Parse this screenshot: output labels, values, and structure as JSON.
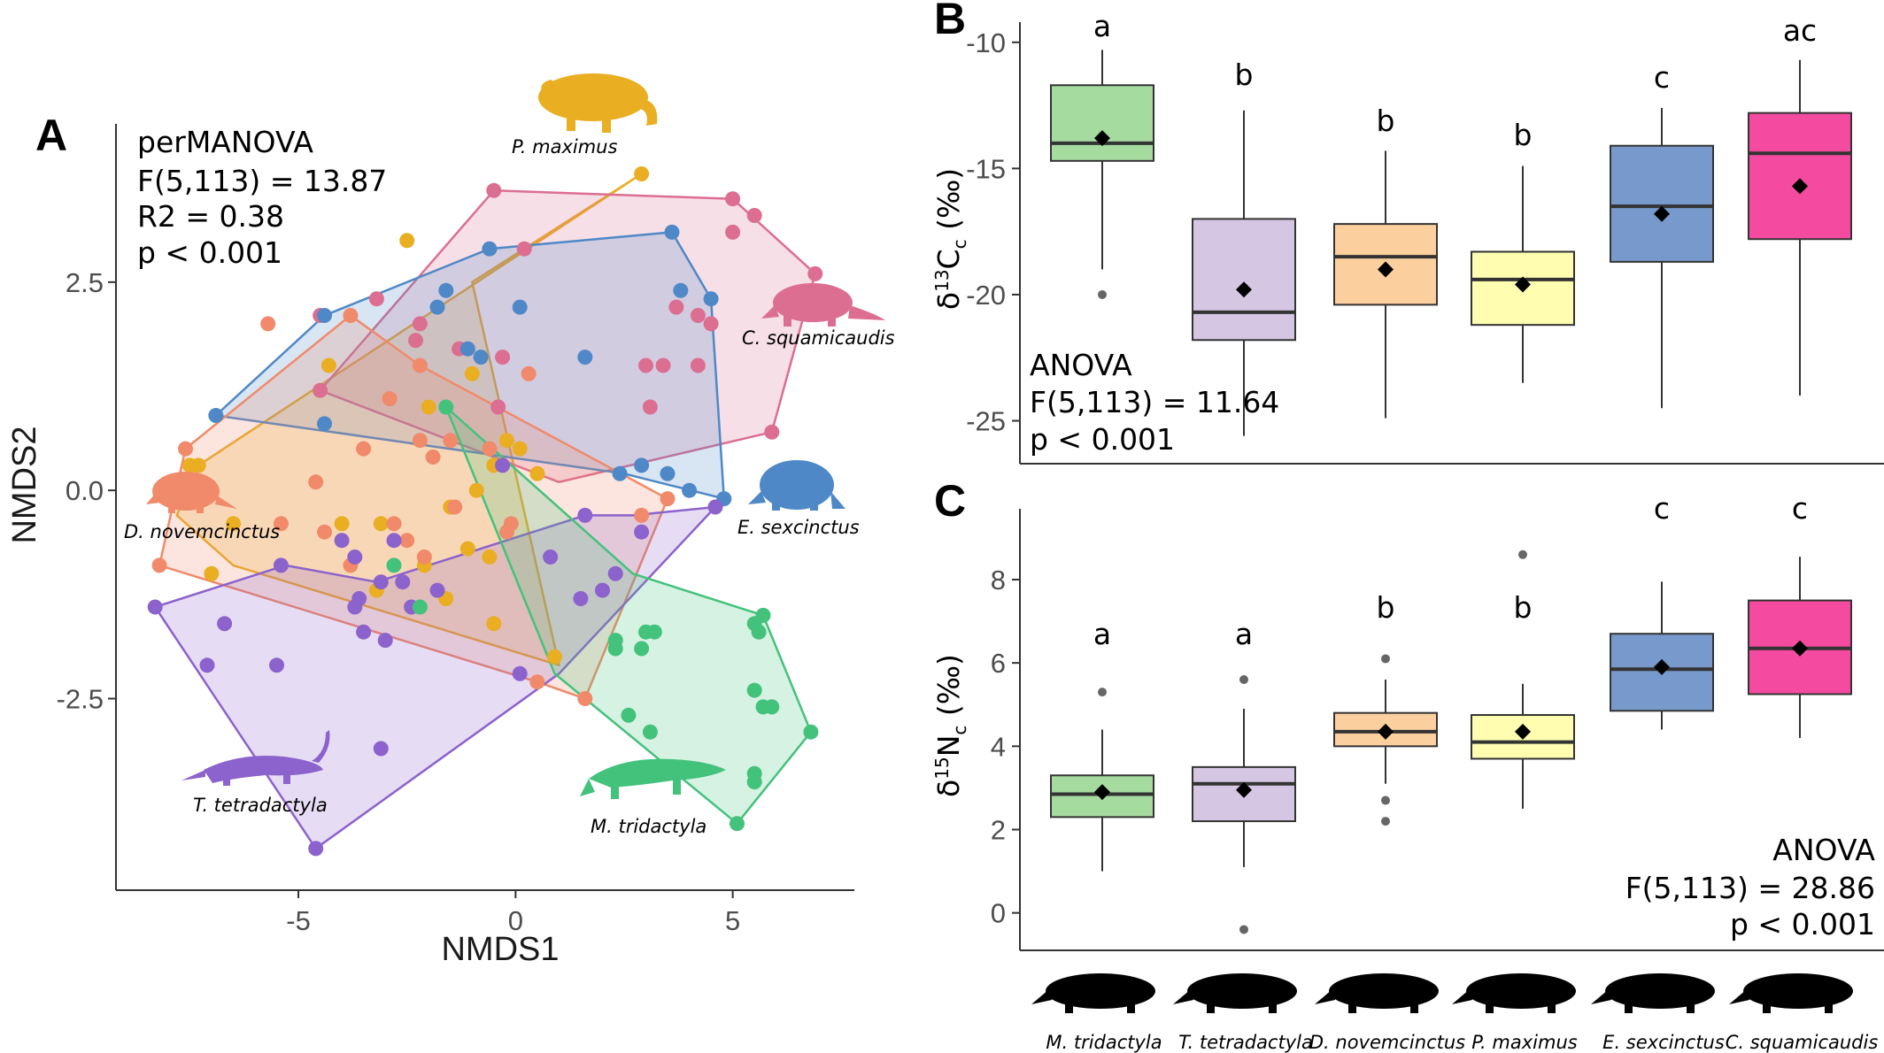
{
  "chart_data": [
    {
      "panel": "A",
      "type": "scatter",
      "xlabel": "NMDS1",
      "ylabel": "NMDS2",
      "xlim": [
        -9.2,
        7.8
      ],
      "ylim": [
        -4.8,
        4.4
      ],
      "xticks": [
        -5,
        0,
        5
      ],
      "xtick_labels": [
        "-5",
        "0",
        "5"
      ],
      "yticks": [
        2.5,
        0.0,
        -2.5
      ],
      "ytick_labels": [
        "2.5",
        "0.0",
        "-2.5"
      ],
      "grid": false,
      "stats": [
        "perMANOVA",
        "F(5,113) = 13.87",
        "R2 = 0.38",
        "p < 0.001"
      ],
      "series": [
        {
          "name": "P. maximus",
          "color": "#e9ae22",
          "hull": [
            [
              2.9,
              3.8
            ],
            [
              -7.3,
              0.3
            ],
            [
              -7.8,
              -0.3
            ],
            [
              -6.5,
              -0.9
            ],
            [
              1.0,
              -2.1
            ],
            [
              -1.0,
              2.5
            ]
          ],
          "points": [
            [
              2.9,
              3.8
            ],
            [
              -2.5,
              3.0
            ],
            [
              -4.3,
              1.5
            ],
            [
              -7.3,
              0.3
            ],
            [
              -6.5,
              -0.4
            ],
            [
              -7.0,
              -1.0
            ],
            [
              -4.0,
              -0.4
            ],
            [
              -3.1,
              -0.4
            ],
            [
              -1.5,
              -0.2
            ],
            [
              -0.5,
              0.3
            ],
            [
              0.1,
              0.5
            ],
            [
              0.5,
              0.2
            ],
            [
              -2.0,
              1.0
            ],
            [
              -1.0,
              1.4
            ],
            [
              -0.9,
              0.0
            ],
            [
              -0.6,
              -0.8
            ],
            [
              -0.2,
              0.6
            ],
            [
              -2.1,
              -0.9
            ],
            [
              -1.1,
              -0.7
            ],
            [
              -1.6,
              -1.3
            ],
            [
              0.9,
              -2.0
            ],
            [
              -3.2,
              -1.2
            ],
            [
              -0.5,
              -1.6
            ],
            [
              -7.5,
              0.3
            ]
          ]
        },
        {
          "name": "C. squamicaudis",
          "color": "#dc6e91",
          "hull": [
            [
              -0.5,
              3.6
            ],
            [
              5.0,
              3.5
            ],
            [
              6.9,
              2.6
            ],
            [
              5.9,
              0.7
            ],
            [
              1.0,
              0.1
            ],
            [
              -4.5,
              1.2
            ]
          ],
          "points": [
            [
              -0.5,
              3.6
            ],
            [
              5.0,
              3.5
            ],
            [
              5.5,
              3.3
            ],
            [
              6.9,
              2.6
            ],
            [
              5.9,
              0.7
            ],
            [
              5.0,
              3.1
            ],
            [
              4.2,
              2.1
            ],
            [
              4.5,
              2.0
            ],
            [
              3.7,
              2.2
            ],
            [
              4.2,
              1.5
            ],
            [
              3.4,
              1.5
            ],
            [
              3.1,
              1.0
            ],
            [
              3.0,
              1.5
            ],
            [
              0.2,
              2.9
            ],
            [
              -2.2,
              2.0
            ],
            [
              -3.2,
              2.3
            ],
            [
              -2.3,
              1.8
            ],
            [
              -4.5,
              1.2
            ],
            [
              -4.5,
              2.1
            ],
            [
              -1.3,
              1.7
            ],
            [
              -0.3,
              1.6
            ],
            [
              -0.4,
              1.0
            ]
          ]
        },
        {
          "name": "E. sexcinctus",
          "color": "#4f88c7",
          "hull": [
            [
              -6.9,
              0.9
            ],
            [
              -4.4,
              2.1
            ],
            [
              -0.6,
              2.9
            ],
            [
              3.6,
              3.1
            ],
            [
              4.5,
              2.3
            ],
            [
              4.8,
              -0.1
            ],
            [
              2.5,
              0.2
            ]
          ],
          "points": [
            [
              -6.9,
              0.9
            ],
            [
              -4.4,
              2.1
            ],
            [
              -0.6,
              2.9
            ],
            [
              3.6,
              3.1
            ],
            [
              4.5,
              2.3
            ],
            [
              4.8,
              -0.1
            ],
            [
              3.8,
              2.4
            ],
            [
              2.4,
              0.2
            ],
            [
              2.9,
              0.3
            ],
            [
              3.5,
              0.2
            ],
            [
              -1.6,
              2.4
            ],
            [
              -0.8,
              1.6
            ],
            [
              -1.1,
              1.7
            ],
            [
              0.1,
              2.2
            ],
            [
              -1.8,
              2.2
            ],
            [
              -4.4,
              0.8
            ],
            [
              1.6,
              1.6
            ],
            [
              4.0,
              0.0
            ]
          ]
        },
        {
          "name": "D. novemcincus",
          "color": "#f08a6a",
          "hull": [
            [
              -7.6,
              0.5
            ],
            [
              -3.8,
              2.1
            ],
            [
              -2.2,
              1.5
            ],
            [
              3.5,
              -0.1
            ],
            [
              1.6,
              -2.5
            ],
            [
              0.5,
              -2.3
            ],
            [
              -8.2,
              -0.9
            ]
          ],
          "points": [
            [
              -5.7,
              2.0
            ],
            [
              -7.6,
              0.5
            ],
            [
              -3.8,
              2.1
            ],
            [
              -2.2,
              1.5
            ],
            [
              -2.2,
              0.6
            ],
            [
              -3.5,
              0.5
            ],
            [
              -4.6,
              0.1
            ],
            [
              -2.9,
              1.1
            ],
            [
              -1.5,
              0.6
            ],
            [
              -0.6,
              0.5
            ],
            [
              -2.1,
              -0.8
            ],
            [
              -2.8,
              -0.4
            ],
            [
              -0.1,
              -0.4
            ],
            [
              -1.4,
              -0.2
            ],
            [
              -0.2,
              -0.5
            ],
            [
              -8.2,
              -0.9
            ],
            [
              -5.4,
              -0.4
            ],
            [
              -3.8,
              -0.9
            ],
            [
              -4.4,
              -0.5
            ],
            [
              0.5,
              -2.3
            ],
            [
              1.6,
              -2.5
            ],
            [
              2.9,
              -0.3
            ],
            [
              3.5,
              -0.1
            ],
            [
              0.3,
              1.4
            ],
            [
              -1.9,
              0.4
            ],
            [
              -2.5,
              -0.6
            ]
          ]
        },
        {
          "name": "T. tetradactyla",
          "color": "#8c62cc",
          "hull": [
            [
              -8.3,
              -1.4
            ],
            [
              -4.6,
              -4.3
            ],
            [
              1.0,
              -2.2
            ],
            [
              4.6,
              -0.2
            ],
            [
              2.7,
              -0.3
            ],
            [
              1.6,
              -0.3
            ],
            [
              -3.2,
              -1.1
            ],
            [
              -5.3,
              -0.9
            ]
          ],
          "points": [
            [
              -8.3,
              -1.4
            ],
            [
              -4.6,
              -4.3
            ],
            [
              -3.1,
              -3.1
            ],
            [
              -5.5,
              -2.1
            ],
            [
              -7.1,
              -2.1
            ],
            [
              -6.7,
              -1.6
            ],
            [
              -3.1,
              -1.1
            ],
            [
              -3.7,
              -0.8
            ],
            [
              -3.6,
              -1.3
            ],
            [
              -3.5,
              -1.7
            ],
            [
              -2.6,
              -1.1
            ],
            [
              -1.8,
              -1.2
            ],
            [
              -2.4,
              -1.4
            ],
            [
              -3.0,
              -1.8
            ],
            [
              -3.7,
              -1.4
            ],
            [
              -5.4,
              -0.9
            ],
            [
              -4.0,
              -0.6
            ],
            [
              1.5,
              -1.3
            ],
            [
              2.3,
              -1.0
            ],
            [
              2.0,
              -1.2
            ],
            [
              2.9,
              -0.5
            ],
            [
              4.6,
              -0.2
            ],
            [
              0.1,
              -2.2
            ],
            [
              0.8,
              -0.8
            ],
            [
              1.6,
              -0.3
            ],
            [
              -0.3,
              0.3
            ],
            [
              -2.8,
              -0.6
            ]
          ]
        },
        {
          "name": "M. tridactyla",
          "color": "#43c27c",
          "hull": [
            [
              -1.6,
              1.0
            ],
            [
              2.7,
              -1.0
            ],
            [
              5.7,
              -1.5
            ],
            [
              6.8,
              -2.9
            ],
            [
              5.1,
              -4.0
            ],
            [
              0.9,
              -2.2
            ]
          ],
          "points": [
            [
              -1.6,
              1.0
            ],
            [
              -2.8,
              -0.9
            ],
            [
              -2.2,
              -1.4
            ],
            [
              2.3,
              -1.8
            ],
            [
              2.3,
              -1.9
            ],
            [
              3.0,
              -1.7
            ],
            [
              2.9,
              -1.9
            ],
            [
              3.2,
              -1.7
            ],
            [
              2.6,
              -2.7
            ],
            [
              3.1,
              -2.9
            ],
            [
              5.5,
              -1.6
            ],
            [
              5.6,
              -1.7
            ],
            [
              5.5,
              -2.4
            ],
            [
              5.7,
              -2.6
            ],
            [
              5.9,
              -2.6
            ],
            [
              6.8,
              -2.9
            ],
            [
              5.5,
              -3.5
            ],
            [
              5.5,
              -3.4
            ],
            [
              5.1,
              -4.0
            ],
            [
              5.7,
              -1.5
            ]
          ]
        }
      ],
      "species_labels": [
        {
          "text": "P. maximus",
          "color": "#e9ae22"
        },
        {
          "text": "C. squamicaudis",
          "color": "#dc6e91"
        },
        {
          "text": "D. novemcinctus",
          "color": "#f08a6a"
        },
        {
          "text": "E. sexcinctus",
          "color": "#4f88c7"
        },
        {
          "text": "T. tetradactyla",
          "color": "#8c62cc"
        },
        {
          "text": "M. tridactyla",
          "color": "#43c27c"
        }
      ]
    },
    {
      "panel": "B",
      "type": "box",
      "ylabel": "δ13Cc (‰)",
      "ylim": [
        -26.7,
        -9.2
      ],
      "yticks": [
        -10,
        -15,
        -20,
        -25
      ],
      "ytick_labels": [
        "-10",
        "-15",
        "-20",
        "-25"
      ],
      "categories": [
        "M. tridactyla",
        "T. tetradactyla",
        "D. novemcinctus",
        "P. maximus",
        "E. sexcinctus",
        "C. squamicaudis"
      ],
      "colors": [
        "#a6dba0",
        "#d5c6e3",
        "#fccf9e",
        "#fefdb0",
        "#7799cc",
        "#f44ba0"
      ],
      "boxes": [
        {
          "q1": -14.7,
          "median": -14.0,
          "q3": -11.7,
          "lower": -19.0,
          "upper": -10.3,
          "mean": -13.8,
          "outliers": [
            -20.0
          ],
          "group": "a"
        },
        {
          "q1": -21.8,
          "median": -20.7,
          "q3": -17.0,
          "lower": -25.6,
          "upper": -12.7,
          "mean": -19.8,
          "outliers": [],
          "group": "b"
        },
        {
          "q1": -20.4,
          "median": -18.5,
          "q3": -17.2,
          "lower": -24.9,
          "upper": -14.3,
          "mean": -19.0,
          "outliers": [],
          "group": "b"
        },
        {
          "q1": -21.2,
          "median": -19.4,
          "q3": -18.3,
          "lower": -23.5,
          "upper": -14.9,
          "mean": -19.6,
          "outliers": [],
          "group": "b"
        },
        {
          "q1": -18.7,
          "median": -16.5,
          "q3": -14.1,
          "lower": -24.5,
          "upper": -12.6,
          "mean": -16.8,
          "outliers": [],
          "group": "c"
        },
        {
          "q1": -17.8,
          "median": -14.4,
          "q3": -12.8,
          "lower": -24.0,
          "upper": -10.7,
          "mean": -15.7,
          "outliers": [],
          "group": "ac"
        }
      ],
      "stats": [
        "ANOVA",
        "F(5,113) = 11.64",
        "p < 0.001"
      ]
    },
    {
      "panel": "C",
      "type": "box",
      "ylabel": "δ15Nc (‰)",
      "ylim": [
        -0.9,
        9.7
      ],
      "yticks": [
        8,
        6,
        4,
        2,
        0
      ],
      "ytick_labels": [
        "8",
        "6",
        "4",
        "2",
        "0"
      ],
      "categories": [
        "M. tridactyla",
        "T. tetradactyla",
        "D. novemcinctus",
        "P. maximus",
        "E. sexcinctus",
        "C. squamicaudis"
      ],
      "colors": [
        "#a6dba0",
        "#d5c6e3",
        "#fccf9e",
        "#fefdb0",
        "#7799cc",
        "#f44ba0"
      ],
      "boxes": [
        {
          "q1": 2.3,
          "median": 2.85,
          "q3": 3.3,
          "lower": 1.0,
          "upper": 4.4,
          "mean": 2.9,
          "outliers": [
            5.3
          ],
          "group": "a"
        },
        {
          "q1": 2.2,
          "median": 3.1,
          "q3": 3.5,
          "lower": 1.1,
          "upper": 4.9,
          "mean": 2.95,
          "outliers": [
            5.6,
            -0.4
          ],
          "group": "a"
        },
        {
          "q1": 4.0,
          "median": 4.35,
          "q3": 4.8,
          "lower": 3.1,
          "upper": 5.6,
          "mean": 4.35,
          "outliers": [
            6.1,
            2.7,
            2.2
          ],
          "group": "b"
        },
        {
          "q1": 3.7,
          "median": 4.1,
          "q3": 4.75,
          "lower": 2.5,
          "upper": 5.5,
          "mean": 4.35,
          "outliers": [
            8.6
          ],
          "group": "b"
        },
        {
          "q1": 4.85,
          "median": 5.85,
          "q3": 6.7,
          "lower": 4.4,
          "upper": 7.95,
          "mean": 5.9,
          "outliers": [],
          "group": "c"
        },
        {
          "q1": 5.25,
          "median": 6.35,
          "q3": 7.5,
          "lower": 4.2,
          "upper": 8.55,
          "mean": 6.35,
          "outliers": [],
          "group": "c"
        }
      ],
      "stats": [
        "ANOVA",
        "F(5,113) = 28.86",
        "p < 0.001"
      ]
    }
  ],
  "panel_letters": [
    "A",
    "B",
    "C"
  ],
  "silhouettes": [
    {
      "icon": "anteater-giant-silhouette",
      "label": "M. tridactyla"
    },
    {
      "icon": "anteater-tamandua-silhouette",
      "label": "T. tetradactyla"
    },
    {
      "icon": "armadillo-small-silhouette",
      "label": "D. novemcinctus"
    },
    {
      "icon": "armadillo-giant-silhouette",
      "label": "P. maximus"
    },
    {
      "icon": "armadillo-six-banded-silhouette",
      "label": "E. sexcinctus"
    },
    {
      "icon": "armadillo-naked-tailed-silhouette",
      "label": "C. squamicaudis"
    }
  ]
}
